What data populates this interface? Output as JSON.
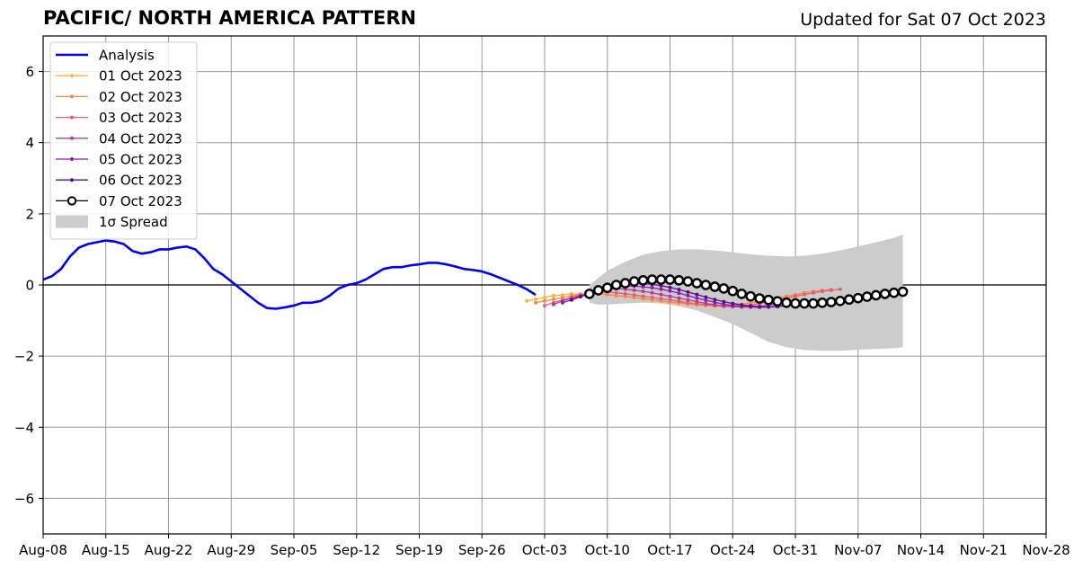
{
  "chart_data": {
    "type": "line",
    "title": "PACIFIC/ NORTH AMERICA PATTERN",
    "subtitle": "Updated for Sat 07 Oct 2023",
    "xlabel": "",
    "ylabel": "",
    "ylim": [
      -7,
      7
    ],
    "yticks": [
      6,
      4,
      2,
      0,
      -2,
      -4,
      -6
    ],
    "ytick_labels": [
      "6",
      "4",
      "2",
      "0",
      "−2",
      "−4",
      "−6"
    ],
    "xlim": [
      "2023-08-08",
      "2023-11-28"
    ],
    "xticks": [
      "2023-08-08",
      "2023-08-15",
      "2023-08-22",
      "2023-08-29",
      "2023-09-05",
      "2023-09-12",
      "2023-09-19",
      "2023-09-26",
      "2023-10-03",
      "2023-10-10",
      "2023-10-17",
      "2023-10-24",
      "2023-10-31",
      "2023-11-07",
      "2023-11-14",
      "2023-11-21",
      "2023-11-28"
    ],
    "xtick_labels": [
      "Aug-08",
      "Aug-15",
      "Aug-22",
      "Aug-29",
      "Sep-05",
      "Sep-12",
      "Sep-19",
      "Sep-26",
      "Oct-03",
      "Oct-10",
      "Oct-17",
      "Oct-24",
      "Oct-31",
      "Nov-07",
      "Nov-14",
      "Nov-21",
      "Nov-28"
    ],
    "grid": true,
    "legend_position": "top-left",
    "legend": [
      {
        "label": "Analysis",
        "kind": "line",
        "color": "#0000ee"
      },
      {
        "label": "01 Oct 2023",
        "kind": "dotline",
        "color": "#fbb43c"
      },
      {
        "label": "02 Oct 2023",
        "kind": "dotline",
        "color": "#f48a52"
      },
      {
        "label": "03 Oct 2023",
        "kind": "dotline",
        "color": "#e0607a"
      },
      {
        "label": "04 Oct 2023",
        "kind": "dotline",
        "color": "#b83c98"
      },
      {
        "label": "05 Oct 2023",
        "kind": "dotline",
        "color": "#8c1ea8"
      },
      {
        "label": "06 Oct 2023",
        "kind": "dotline",
        "color": "#5a0d8c"
      },
      {
        "label": "07 Oct 2023",
        "kind": "circleline",
        "color": "#000000"
      },
      {
        "label": "1σ Spread",
        "kind": "patch",
        "color": "#cccccc"
      }
    ],
    "analysis": {
      "name": "Analysis",
      "color": "#0000ee",
      "x": [
        "2023-08-08",
        "2023-08-09",
        "2023-08-10",
        "2023-08-11",
        "2023-08-12",
        "2023-08-13",
        "2023-08-14",
        "2023-08-15",
        "2023-08-16",
        "2023-08-17",
        "2023-08-18",
        "2023-08-19",
        "2023-08-20",
        "2023-08-21",
        "2023-08-22",
        "2023-08-23",
        "2023-08-24",
        "2023-08-25",
        "2023-08-26",
        "2023-08-27",
        "2023-08-28",
        "2023-08-29",
        "2023-08-30",
        "2023-08-31",
        "2023-09-01",
        "2023-09-02",
        "2023-09-03",
        "2023-09-04",
        "2023-09-05",
        "2023-09-06",
        "2023-09-07",
        "2023-09-08",
        "2023-09-09",
        "2023-09-10",
        "2023-09-11",
        "2023-09-12",
        "2023-09-13",
        "2023-09-14",
        "2023-09-15",
        "2023-09-16",
        "2023-09-17",
        "2023-09-18",
        "2023-09-19",
        "2023-09-20",
        "2023-09-21",
        "2023-09-22",
        "2023-09-23",
        "2023-09-24",
        "2023-09-25",
        "2023-09-26",
        "2023-09-27",
        "2023-09-28",
        "2023-09-29",
        "2023-09-30",
        "2023-10-01",
        "2023-10-02"
      ],
      "values": [
        0.15,
        0.25,
        0.45,
        0.8,
        1.05,
        1.15,
        1.2,
        1.25,
        1.22,
        1.15,
        0.95,
        0.88,
        0.92,
        1.0,
        1.0,
        1.05,
        1.08,
        1.0,
        0.75,
        0.45,
        0.3,
        0.1,
        -0.1,
        -0.3,
        -0.5,
        -0.65,
        -0.67,
        -0.63,
        -0.58,
        -0.5,
        -0.5,
        -0.45,
        -0.3,
        -0.1,
        0.0,
        0.05,
        0.15,
        0.3,
        0.45,
        0.5,
        0.5,
        0.55,
        0.58,
        0.62,
        0.62,
        0.58,
        0.52,
        0.45,
        0.42,
        0.38,
        0.3,
        0.2,
        0.1,
        0.0,
        -0.12,
        -0.28
      ]
    },
    "forecasts": [
      {
        "name": "01 Oct 2023",
        "color": "#fbb43c",
        "start": "2023-10-01",
        "values": [
          -0.45,
          -0.4,
          -0.35,
          -0.3,
          -0.28,
          -0.25,
          -0.25,
          -0.25,
          -0.25,
          -0.27,
          -0.3,
          -0.33,
          -0.36,
          -0.4,
          -0.43,
          -0.46,
          -0.5,
          -0.52,
          -0.55,
          -0.57,
          -0.58,
          -0.6,
          -0.6,
          -0.58,
          -0.56,
          -0.52,
          -0.48,
          -0.43,
          -0.38,
          -0.33,
          -0.28,
          -0.23,
          -0.18,
          -0.15
        ]
      },
      {
        "name": "02 Oct 2023",
        "color": "#f48a52",
        "start": "2023-10-02",
        "values": [
          -0.5,
          -0.45,
          -0.4,
          -0.35,
          -0.3,
          -0.27,
          -0.25,
          -0.25,
          -0.27,
          -0.3,
          -0.32,
          -0.35,
          -0.38,
          -0.42,
          -0.45,
          -0.48,
          -0.5,
          -0.53,
          -0.55,
          -0.57,
          -0.58,
          -0.58,
          -0.57,
          -0.54,
          -0.5,
          -0.46,
          -0.42,
          -0.37,
          -0.32,
          -0.27,
          -0.22,
          -0.18,
          -0.15,
          -0.13
        ]
      },
      {
        "name": "03 Oct 2023",
        "color": "#e0607a",
        "start": "2023-10-03",
        "values": [
          -0.58,
          -0.5,
          -0.42,
          -0.35,
          -0.28,
          -0.23,
          -0.2,
          -0.2,
          -0.22,
          -0.25,
          -0.28,
          -0.32,
          -0.35,
          -0.39,
          -0.42,
          -0.46,
          -0.5,
          -0.53,
          -0.56,
          -0.58,
          -0.6,
          -0.61,
          -0.6,
          -0.57,
          -0.52,
          -0.47,
          -0.42,
          -0.37,
          -0.32,
          -0.27,
          -0.22,
          -0.18,
          -0.15,
          -0.12
        ]
      },
      {
        "name": "04 Oct 2023",
        "color": "#b83c98",
        "start": "2023-10-04",
        "values": [
          -0.55,
          -0.45,
          -0.38,
          -0.3,
          -0.22,
          -0.15,
          -0.12,
          -0.1,
          -0.12,
          -0.15,
          -0.18,
          -0.22,
          -0.27,
          -0.32,
          -0.37,
          -0.42,
          -0.47,
          -0.52,
          -0.56,
          -0.59,
          -0.61,
          -0.62,
          -0.62,
          -0.6,
          -0.57,
          -0.53
        ]
      },
      {
        "name": "05 Oct 2023",
        "color": "#8c1ea8",
        "start": "2023-10-05",
        "values": [
          -0.5,
          -0.42,
          -0.33,
          -0.25,
          -0.18,
          -0.1,
          -0.05,
          -0.03,
          -0.03,
          -0.05,
          -0.08,
          -0.12,
          -0.17,
          -0.23,
          -0.3,
          -0.37,
          -0.43,
          -0.49,
          -0.54,
          -0.58,
          -0.6,
          -0.62,
          -0.63,
          -0.62,
          -0.6
        ]
      },
      {
        "name": "06 Oct 2023",
        "color": "#5a0d8c",
        "start": "2023-10-06",
        "values": [
          -0.42,
          -0.33,
          -0.25,
          -0.15,
          -0.07,
          0.0,
          0.04,
          0.05,
          0.04,
          0.02,
          -0.02,
          -0.07,
          -0.13,
          -0.2,
          -0.27,
          -0.34,
          -0.41,
          -0.47,
          -0.52,
          -0.56,
          -0.59,
          -0.61,
          -0.62,
          -0.61,
          -0.58
        ]
      },
      {
        "name": "07 Oct 2023",
        "color": "#000000",
        "start": "2023-10-08",
        "values": [
          -0.25,
          -0.15,
          -0.08,
          0.0,
          0.05,
          0.1,
          0.13,
          0.15,
          0.15,
          0.15,
          0.13,
          0.1,
          0.05,
          0.0,
          -0.05,
          -0.1,
          -0.17,
          -0.25,
          -0.32,
          -0.38,
          -0.42,
          -0.46,
          -0.5,
          -0.52,
          -0.52,
          -0.52,
          -0.5,
          -0.48,
          -0.45,
          -0.41,
          -0.37,
          -0.33,
          -0.29,
          -0.25,
          -0.22,
          -0.19
        ]
      }
    ],
    "spread": {
      "name": "1σ Spread",
      "color": "#cccccc",
      "x": [
        "2023-10-08",
        "2023-10-09",
        "2023-10-10",
        "2023-10-12",
        "2023-10-14",
        "2023-10-16",
        "2023-10-18",
        "2023-10-20",
        "2023-10-22",
        "2023-10-24",
        "2023-10-26",
        "2023-10-28",
        "2023-10-30",
        "2023-11-01",
        "2023-11-03",
        "2023-11-05",
        "2023-11-07",
        "2023-11-09",
        "2023-11-11",
        "2023-11-12"
      ],
      "upper": [
        0.0,
        0.2,
        0.4,
        0.65,
        0.85,
        0.95,
        1.0,
        1.0,
        0.97,
        0.92,
        0.86,
        0.82,
        0.8,
        0.82,
        0.88,
        0.97,
        1.08,
        1.2,
        1.32,
        1.42
      ],
      "lower": [
        -0.5,
        -0.55,
        -0.55,
        -0.52,
        -0.5,
        -0.52,
        -0.6,
        -0.72,
        -0.9,
        -1.1,
        -1.35,
        -1.6,
        -1.75,
        -1.83,
        -1.85,
        -1.85,
        -1.82,
        -1.8,
        -1.78,
        -1.75
      ]
    }
  }
}
